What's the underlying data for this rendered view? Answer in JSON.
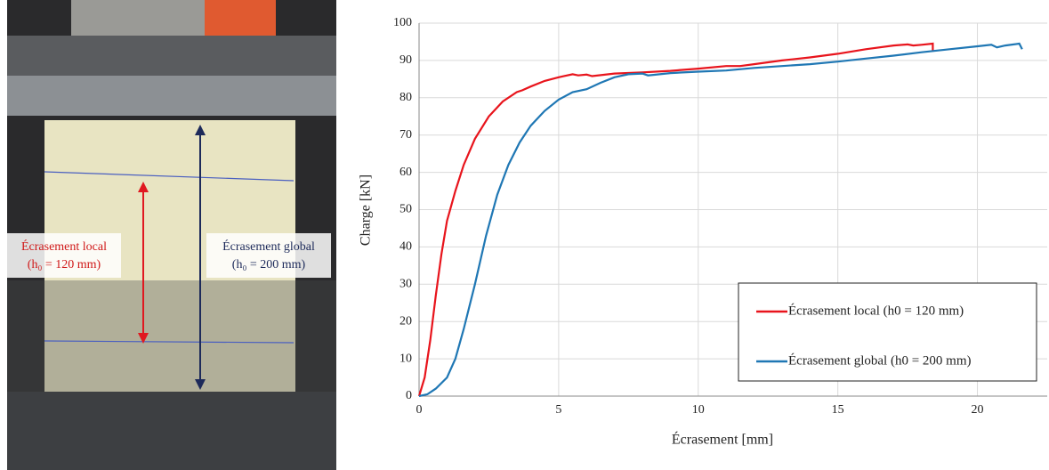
{
  "photo_labels": {
    "local": [
      "Écrasement local",
      "(h₀ = 120 mm)"
    ],
    "global": [
      "Écrasement global",
      "(h₀ = 200 mm)"
    ]
  },
  "chart_data": {
    "type": "line",
    "x_label": "Écrasement [mm]",
    "y_label": "Charge [kN]",
    "xlim": [
      0,
      22.5
    ],
    "ylim": [
      0,
      100
    ],
    "xticks": [
      0,
      5,
      10,
      15,
      20
    ],
    "yticks": [
      0,
      10,
      20,
      30,
      40,
      50,
      60,
      70,
      80,
      90,
      100
    ],
    "grid": true,
    "legend": "lower right",
    "series": [
      {
        "name": "Écrasement local (h0 = 120 mm)",
        "color": "#e8141c",
        "x": [
          0,
          0.2,
          0.4,
          0.6,
          0.8,
          1.0,
          1.3,
          1.6,
          2,
          2.5,
          3,
          3.5,
          3.7,
          4,
          4.5,
          5,
          5.5,
          5.7,
          6,
          6.2,
          7,
          8,
          9,
          10,
          11,
          11.5,
          12,
          13,
          14,
          15,
          16,
          17,
          17.5,
          17.7,
          18,
          18.4,
          18.4
        ],
        "values": [
          0,
          5,
          15,
          27,
          38,
          47,
          55,
          62,
          69,
          75,
          79,
          81.5,
          82,
          83,
          84.5,
          85.5,
          86.3,
          86,
          86.2,
          85.8,
          86.5,
          86.8,
          87.2,
          87.8,
          88.5,
          88.5,
          89,
          90,
          90.8,
          91.8,
          93,
          94,
          94.3,
          94,
          94.2,
          94.5,
          92.5
        ]
      },
      {
        "name": "Écrasement global (h0 = 200 mm)",
        "color": "#1f77b4",
        "x": [
          0,
          0.3,
          0.6,
          1,
          1.3,
          1.6,
          2,
          2.4,
          2.8,
          3.2,
          3.6,
          4,
          4.5,
          5,
          5.5,
          6,
          6.5,
          7,
          7.5,
          8,
          8.2,
          9,
          10,
          11,
          12,
          13,
          14,
          15,
          16,
          17,
          18,
          19,
          20,
          20.5,
          20.7,
          21,
          21.5,
          21.6
        ],
        "values": [
          0,
          0.5,
          2,
          5,
          10,
          18,
          30,
          43,
          54,
          62,
          68,
          72.5,
          76.5,
          79.5,
          81.5,
          82.3,
          84,
          85.5,
          86.3,
          86.5,
          86,
          86.6,
          87,
          87.3,
          88,
          88.5,
          89,
          89.7,
          90.5,
          91.3,
          92.2,
          93,
          93.8,
          94.2,
          93.5,
          94,
          94.5,
          93
        ]
      }
    ]
  }
}
